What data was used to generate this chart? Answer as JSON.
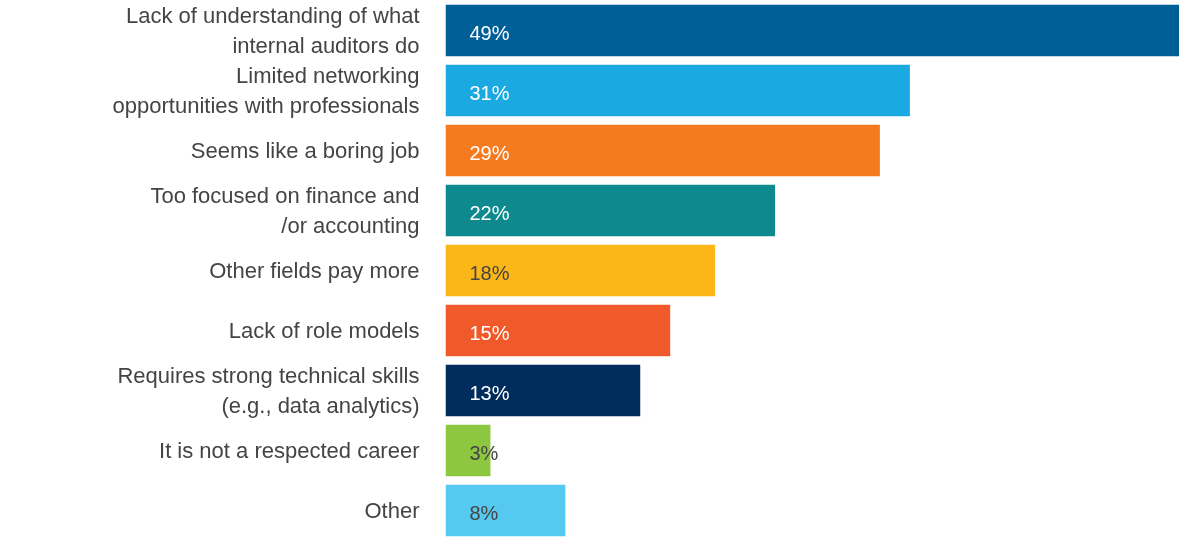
{
  "chart_data": {
    "type": "bar",
    "orientation": "horizontal",
    "categories": [
      "Lack of understanding of what\ninternal auditors do",
      "Limited networking\nopportunities with professionals",
      "Seems like a boring job",
      "Too focused on finance and\n/or accounting",
      "Other fields pay more",
      "Lack of role models",
      "Requires strong technical skills\n(e.g., data analytics)",
      "It is not a respected career",
      "Other"
    ],
    "values": [
      49,
      31,
      29,
      22,
      18,
      15,
      13,
      3,
      8
    ],
    "colors": [
      "#005f96",
      "#1ba9e1",
      "#f47b20",
      "#0e8a8f",
      "#fbb617",
      "#f0592a",
      "#002d5c",
      "#8dc63f",
      "#56c9f1"
    ],
    "value_labels": [
      "49%",
      "31%",
      "29%",
      "22%",
      "18%",
      "15%",
      "13%",
      "3%",
      "8%"
    ],
    "grid": false
  }
}
